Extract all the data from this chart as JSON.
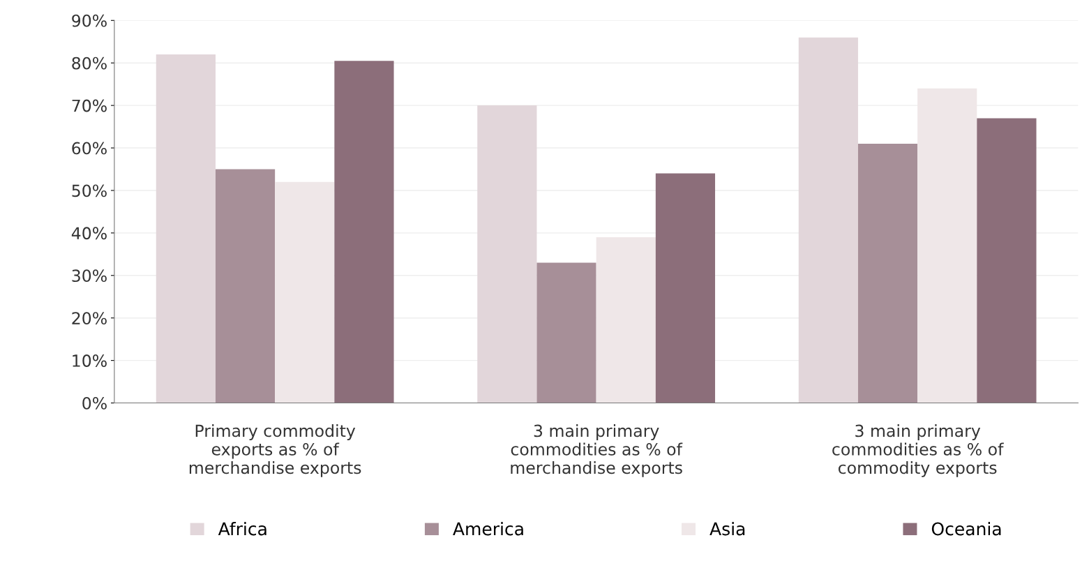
{
  "chart_data": {
    "type": "bar",
    "categories": [
      "Primary commodity exports as % of merchandise exports",
      "3 main primary commodities as % of merchandise exports",
      "3 main primary commodities as % of commodity exports"
    ],
    "series": [
      {
        "name": "Africa",
        "color": "#e2d6da",
        "values": [
          82,
          70,
          86
        ]
      },
      {
        "name": "America",
        "color": "#a78f98",
        "values": [
          55,
          33,
          61
        ]
      },
      {
        "name": "Asia",
        "color": "#efe7e8",
        "values": [
          52,
          39,
          74
        ]
      },
      {
        "name": "Oceania",
        "color": "#8c6e7a",
        "values": [
          80.5,
          54,
          67
        ]
      }
    ],
    "ylim": [
      0,
      90
    ],
    "yticks": [
      {
        "value": 0,
        "label": "0%"
      },
      {
        "value": 10,
        "label": "10%"
      },
      {
        "value": 20,
        "label": "20%"
      },
      {
        "value": 30,
        "label": "30%"
      },
      {
        "value": 40,
        "label": "40%"
      },
      {
        "value": 50,
        "label": "50%"
      },
      {
        "value": 60,
        "label": "60%"
      },
      {
        "value": 70,
        "label": "70%"
      },
      {
        "value": 80,
        "label": "80%"
      },
      {
        "value": 90,
        "label": "90%"
      }
    ],
    "grid": "y",
    "legend": "bottom"
  }
}
